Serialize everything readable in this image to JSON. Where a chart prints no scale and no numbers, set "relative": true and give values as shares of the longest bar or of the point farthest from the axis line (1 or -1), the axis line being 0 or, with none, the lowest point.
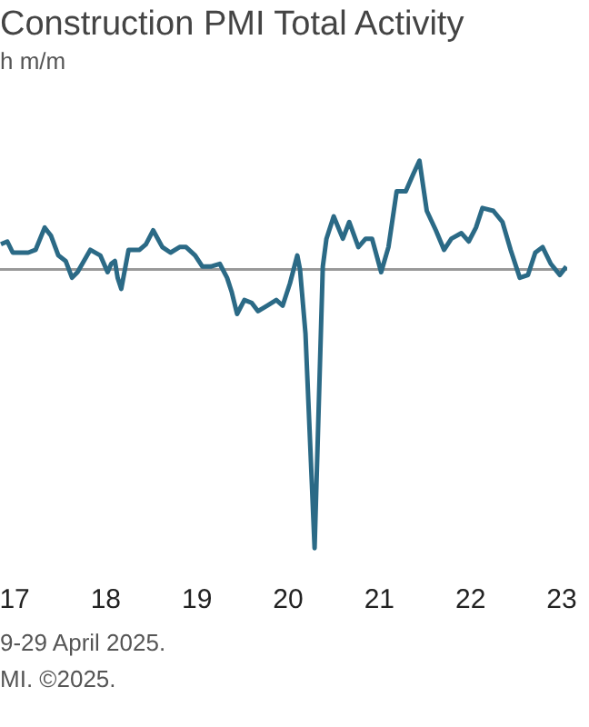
{
  "chart_data": {
    "type": "line",
    "title": "Construction PMI Total Activity",
    "subtitle": "h m/m",
    "relative": true,
    "marker": "none",
    "line_style": "solid",
    "xlim": [
      2016.84,
      2023.06
    ],
    "xticks": [
      {
        "value": 2017,
        "label": "17"
      },
      {
        "value": 2018,
        "label": "18"
      },
      {
        "value": 2019,
        "label": "19"
      },
      {
        "value": 2020,
        "label": "20"
      },
      {
        "value": 2021,
        "label": "21"
      },
      {
        "value": 2022,
        "label": "22"
      },
      {
        "value": 2023,
        "label": "23"
      }
    ],
    "x": [
      2016.85,
      2016.92,
      2016.98,
      2017.06,
      2017.15,
      2017.23,
      2017.33,
      2017.4,
      2017.48,
      2017.56,
      2017.63,
      2017.69,
      2017.83,
      2017.94,
      2018.02,
      2018.06,
      2018.1,
      2018.13,
      2018.17,
      2018.25,
      2018.37,
      2018.44,
      2018.52,
      2018.62,
      2018.71,
      2018.81,
      2018.88,
      2018.98,
      2019.06,
      2019.15,
      2019.25,
      2019.33,
      2019.38,
      2019.44,
      2019.52,
      2019.6,
      2019.67,
      2019.77,
      2019.87,
      2019.94,
      2020.02,
      2020.1,
      2020.13,
      2020.19,
      2020.29,
      2020.38,
      2020.42,
      2020.5,
      2020.6,
      2020.67,
      2020.77,
      2020.85,
      2020.92,
      2021.02,
      2021.1,
      2021.19,
      2021.29,
      2021.37,
      2021.44,
      2021.52,
      2021.62,
      2021.71,
      2021.79,
      2021.9,
      2021.98,
      2022.06,
      2022.13,
      2022.25,
      2022.35,
      2022.44,
      2022.54,
      2022.63,
      2022.71,
      2022.79,
      2022.88,
      2022.98,
      2023.05
    ],
    "series": [
      {
        "color": "#2b6a86",
        "values": [
          0.09,
          0.1,
          0.06,
          0.06,
          0.06,
          0.07,
          0.15,
          0.12,
          0.05,
          0.03,
          -0.03,
          -0.01,
          0.07,
          0.05,
          -0.01,
          0.02,
          0.03,
          -0.03,
          -0.07,
          0.07,
          0.07,
          0.09,
          0.14,
          0.08,
          0.06,
          0.08,
          0.08,
          0.05,
          0.01,
          0.01,
          0.02,
          -0.03,
          -0.08,
          -0.16,
          -0.11,
          -0.12,
          -0.15,
          -0.13,
          -0.11,
          -0.13,
          -0.05,
          0.05,
          0,
          -0.23,
          -1,
          0.01,
          0.11,
          0.19,
          0.11,
          0.17,
          0.08,
          0.11,
          0.11,
          -0.01,
          0.08,
          0.28,
          0.28,
          0.34,
          0.39,
          0.21,
          0.14,
          0.07,
          0.11,
          0.13,
          0.1,
          0.15,
          0.22,
          0.21,
          0.17,
          0.07,
          -0.03,
          -0.02,
          0.06,
          0.08,
          0.02,
          -0.02,
          0.01
        ]
      }
    ],
    "annotations": [
      "9-29 April 2025.",
      "MI. ©2025."
    ]
  }
}
